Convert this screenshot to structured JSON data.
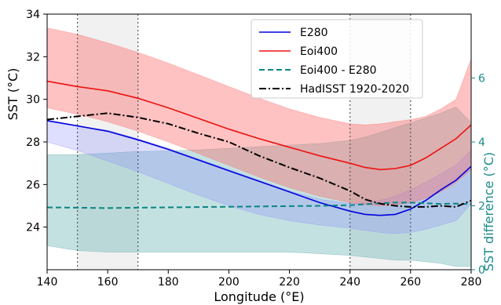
{
  "chart_data": {
    "type": "line",
    "xlabel": "Longitude (°E)",
    "ylabel": "SST (°C)",
    "y2label": "SST difference (°C)",
    "xlim": [
      140,
      280
    ],
    "ylim": [
      22,
      34
    ],
    "y2lim": [
      0,
      8
    ],
    "xticks": [
      "140",
      "160",
      "180",
      "200",
      "220",
      "240",
      "260",
      "280"
    ],
    "yticks": [
      "24",
      "26",
      "28",
      "30",
      "32",
      "34"
    ],
    "y2ticks": [
      "0",
      "2",
      "4",
      "6"
    ],
    "grid": false,
    "legend_position": "top-right",
    "shaded_regions": [
      [
        150,
        170
      ],
      [
        240,
        260
      ]
    ],
    "x": [
      140,
      150,
      160,
      170,
      180,
      190,
      200,
      210,
      220,
      230,
      240,
      245,
      250,
      255,
      260,
      265,
      270,
      275,
      280
    ],
    "series": [
      {
        "name": "E280",
        "color": "#0000dd",
        "style": "solid",
        "axis": "left",
        "values": [
          29.0,
          28.75,
          28.5,
          28.1,
          27.65,
          27.15,
          26.65,
          26.15,
          25.65,
          25.15,
          24.75,
          24.6,
          24.55,
          24.6,
          24.85,
          25.25,
          25.75,
          26.2,
          26.85
        ],
        "band_upper": [
          28.95,
          28.75,
          28.55,
          28.15,
          27.7,
          27.2,
          26.7,
          26.2,
          25.7,
          25.3,
          25.1,
          25.15,
          25.25,
          25.45,
          25.75,
          26.1,
          26.5,
          26.9,
          27.6
        ],
        "band_lower": [
          28.0,
          27.6,
          27.1,
          26.6,
          26.05,
          25.5,
          25.0,
          24.6,
          24.3,
          24.1,
          23.95,
          23.85,
          23.75,
          23.7,
          23.75,
          23.9,
          24.1,
          24.3,
          25.1
        ]
      },
      {
        "name": "Eoi400",
        "color": "#ee1111",
        "style": "solid",
        "axis": "left",
        "values": [
          30.85,
          30.6,
          30.4,
          30.05,
          29.6,
          29.1,
          28.6,
          28.15,
          27.75,
          27.35,
          27.0,
          26.8,
          26.7,
          26.75,
          26.9,
          27.25,
          27.7,
          28.15,
          28.8
        ],
        "band_upper": [
          33.35,
          33.05,
          32.65,
          32.2,
          31.7,
          31.15,
          30.6,
          30.05,
          29.55,
          29.15,
          28.85,
          28.8,
          28.85,
          28.95,
          29.05,
          29.2,
          29.55,
          30.0,
          31.9
        ],
        "band_lower": [
          29.6,
          29.3,
          28.95,
          28.5,
          28.0,
          27.45,
          26.9,
          26.35,
          25.85,
          25.45,
          25.15,
          25.05,
          25.0,
          25.05,
          25.15,
          25.35,
          25.65,
          26.1,
          26.7
        ]
      },
      {
        "name": "Eoi400 - E280",
        "color": "#0a8585",
        "style": "dashed",
        "axis": "right",
        "values": [
          1.95,
          1.94,
          1.93,
          1.94,
          1.95,
          1.96,
          1.97,
          1.98,
          1.99,
          2.0,
          2.02,
          2.05,
          2.08,
          2.1,
          2.1,
          2.08,
          2.06,
          2.07,
          2.05
        ],
        "band_upper": [
          3.6,
          3.6,
          3.65,
          3.7,
          3.72,
          3.75,
          3.8,
          3.85,
          3.9,
          3.95,
          4.05,
          4.15,
          4.3,
          4.45,
          4.6,
          4.75,
          4.9,
          5.1,
          4.6
        ],
        "band_lower": [
          0.75,
          0.6,
          0.55,
          0.55,
          0.55,
          0.55,
          0.55,
          0.55,
          0.55,
          0.5,
          0.45,
          0.4,
          0.35,
          0.3,
          0.3,
          0.25,
          0.2,
          0.1,
          0.1
        ]
      },
      {
        "name": "HadISST 1920-2020",
        "color": "#000000",
        "style": "dashdot",
        "axis": "left",
        "values": [
          29.05,
          29.2,
          29.35,
          29.15,
          28.85,
          28.4,
          28.0,
          27.35,
          26.8,
          26.3,
          25.7,
          25.3,
          25.1,
          25.0,
          24.95,
          24.95,
          25.0,
          24.95,
          25.25
        ]
      }
    ]
  }
}
